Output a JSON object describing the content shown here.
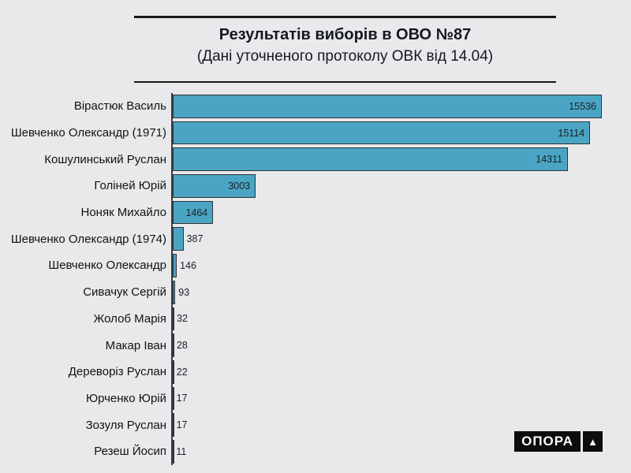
{
  "header": {
    "title": "Результатів виборів в ОВО №87",
    "subtitle": "(Дані уточненого протоколу ОВК від 14.04)"
  },
  "logo": {
    "text": "ОПОРА",
    "mark": "▲"
  },
  "colors": {
    "background": "#E9E9EC",
    "bar_fill": "#4AA5C4",
    "bar_border": "#2F3237",
    "text": "#14181F",
    "logo_background": "#0D0D0D"
  },
  "chart_data": {
    "type": "bar",
    "orientation": "horizontal",
    "title": "Результатів виборів в ОВО №87",
    "subtitle": "(Дані уточненого протоколу ОВК від 14.04)",
    "categories": [
      "Вірастюк Василь",
      "Шевченко Олександр (1971)",
      "Кошулинський Руслан",
      "Голіней Юрій",
      "Ноняк Михайло",
      "Шевченко Олександр (1974)",
      "Шевченко Олександр",
      "Сивачук Сергій",
      "Жолоб Марія",
      "Макар Іван",
      "Дереворіз Руслан",
      "Юрченко Юрій",
      "Зозуля Руслан",
      "Резеш Йосип"
    ],
    "values": [
      15536,
      15114,
      14311,
      3003,
      1464,
      387,
      146,
      93,
      32,
      28,
      22,
      17,
      17,
      11
    ],
    "xlabel": "",
    "ylabel": "",
    "xlim": [
      0,
      15800
    ],
    "grid": false,
    "legend": false,
    "value_labels": "at bar end (inside bar when it fits, otherwise right of bar)"
  }
}
